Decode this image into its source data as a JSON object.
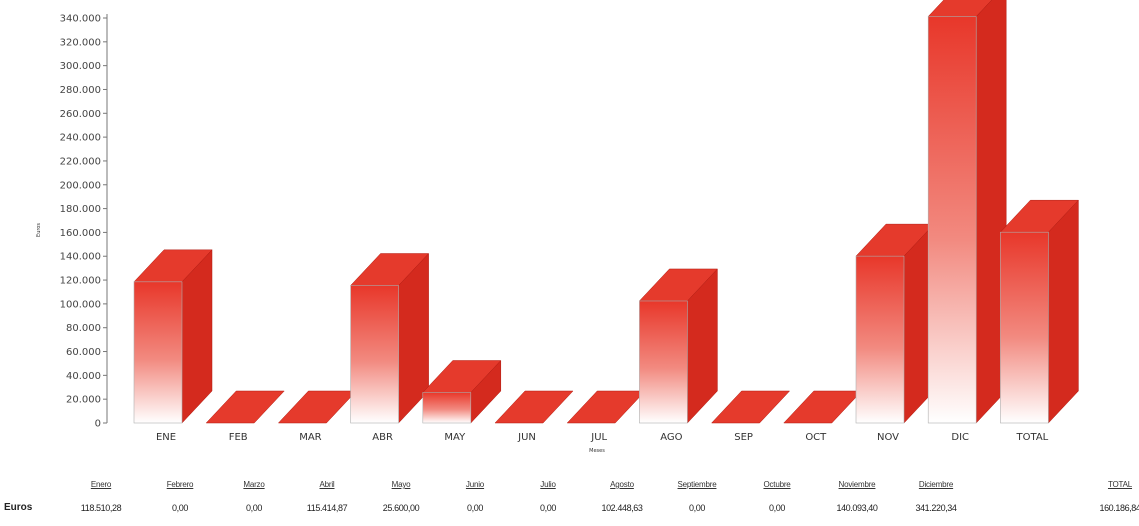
{
  "chart_data": {
    "type": "bar",
    "style": "3d",
    "color": "#e8372a",
    "categories": [
      "ENE",
      "FEB",
      "MAR",
      "ABR",
      "MAY",
      "JUN",
      "JUL",
      "AGO",
      "SEP",
      "OCT",
      "NOV",
      "DIC",
      "TOTAL"
    ],
    "values": [
      118510.28,
      0,
      0,
      115414.87,
      25600.0,
      0,
      0,
      102448.63,
      0,
      0,
      140093.4,
      341220.34,
      160186.84
    ],
    "ylabel": "Euros",
    "xlabel": "Meses",
    "ylim": [
      0,
      340000
    ],
    "yticks": [
      0,
      20000,
      40000,
      60000,
      80000,
      100000,
      120000,
      140000,
      160000,
      180000,
      200000,
      220000,
      240000,
      260000,
      280000,
      300000,
      320000,
      340000
    ],
    "ytick_labels": [
      "0",
      "20.000",
      "40.000",
      "60.000",
      "80.000",
      "100.000",
      "120.000",
      "140.000",
      "160.000",
      "180.000",
      "200.000",
      "220.000",
      "240.000",
      "260.000",
      "280.000",
      "300.000",
      "320.000",
      "340.000"
    ],
    "legend": "none",
    "grid": false
  },
  "table": {
    "row_label": "Euros",
    "headers": [
      "Enero",
      "Febrero",
      "Marzo",
      "Abril",
      "Mayo",
      "Junio",
      "Julio",
      "Agosto",
      "Septiembre",
      "Octubre",
      "Noviembre",
      "Diciembre",
      "TOTAL"
    ],
    "values": [
      "118.510,28",
      "0,00",
      "0,00",
      "115.414,87",
      "25.600,00",
      "0,00",
      "0,00",
      "102.448,63",
      "0,00",
      "0,00",
      "140.093,40",
      "341.220,34",
      "160.186,84"
    ]
  }
}
